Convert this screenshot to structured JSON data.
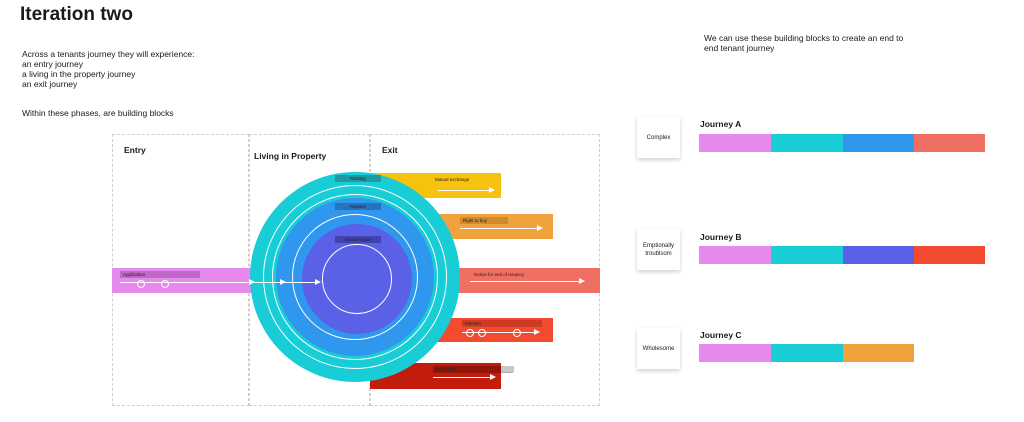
{
  "title": "Iteration two",
  "intro": {
    "heading": "Across a tenants journey they will experience:",
    "line1": "an entry journey",
    "line2": "a living in the property journey",
    "line3": "an exit journey"
  },
  "blocks_note": "Within these phases, are building blocks",
  "right_note": "We can use these building blocks to create an end to end tenant journey",
  "phases": {
    "entry": "Entry",
    "living": "Living in Property",
    "exit": "Exit"
  },
  "rings": {
    "renting": "Renting",
    "repairs": "Repairs",
    "social_issues": "Social issues"
  },
  "blocks": {
    "application": "Application",
    "mutual_exchange": "Mutual exchange",
    "right_to_buy": "Right to buy",
    "notice": "Notice for end of tenancy",
    "eviction": "Eviction",
    "end_of_life": "End of life"
  },
  "journeys": [
    {
      "label": "Complex",
      "name": "Journey A",
      "segments": [
        "#e589ec",
        "#19cdd6",
        "#3097ee",
        "#ef6f62"
      ]
    },
    {
      "label": "Emptionally troublsom",
      "name": "Journey B",
      "segments": [
        "#e589ec",
        "#19cdd6",
        "#5b61e6",
        "#f24b2f"
      ]
    },
    {
      "label": "Wholesome",
      "name": "Journey C",
      "segments": [
        "#e589ec",
        "#19cdd6",
        "#f0a23c"
      ]
    }
  ],
  "colors": {
    "application": "#e589ec",
    "teal": "#19cdd6",
    "blue": "#3097ee",
    "indigo": "#5b61e6",
    "mutual_exchange": "#f7c20d",
    "right_to_buy": "#f0a23c",
    "notice": "#ef6f62",
    "eviction": "#f24b2f",
    "end_of_life": "#c21d0c"
  }
}
